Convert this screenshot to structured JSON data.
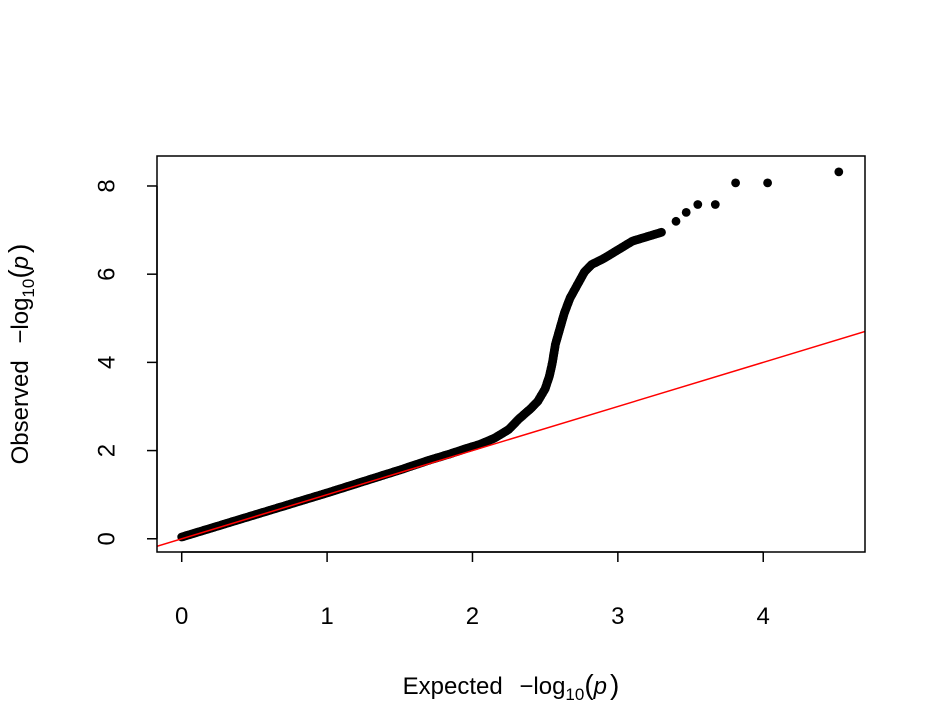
{
  "chart_data": {
    "type": "scatter",
    "title": "",
    "xlabel": {
      "prefix": "Expected",
      "minus": "−",
      "log": "log",
      "base": "10",
      "open": "(",
      "var": "p",
      "close": ")"
    },
    "ylabel": {
      "prefix": "Observed",
      "minus": "−",
      "log": "log",
      "base": "10",
      "open": "(",
      "var": "p",
      "close": ")"
    },
    "xlim": [
      -0.17,
      4.7
    ],
    "ylim": [
      -0.3,
      8.68
    ],
    "x_ticks": [
      0,
      1,
      2,
      3,
      4
    ],
    "y_ticks": [
      0,
      2,
      4,
      6,
      8
    ],
    "x_tick_labels": [
      "0",
      "1",
      "2",
      "3",
      "4"
    ],
    "y_tick_labels": [
      "0",
      "2",
      "4",
      "6",
      "8"
    ],
    "grid": false,
    "legend": "none",
    "reference_line": {
      "intercept": 0,
      "slope": 1,
      "color": "#ff0000"
    },
    "point_color": "#000000",
    "series": [
      {
        "name": "observed",
        "main_trend": [
          [
            0.0,
            0.04
          ],
          [
            0.25,
            0.29
          ],
          [
            0.5,
            0.54
          ],
          [
            0.75,
            0.79
          ],
          [
            1.0,
            1.04
          ],
          [
            1.25,
            1.3
          ],
          [
            1.5,
            1.56
          ],
          [
            1.7,
            1.78
          ],
          [
            1.85,
            1.93
          ],
          [
            1.95,
            2.04
          ],
          [
            2.05,
            2.14
          ],
          [
            2.15,
            2.28
          ],
          [
            2.25,
            2.48
          ],
          [
            2.32,
            2.72
          ],
          [
            2.4,
            2.95
          ],
          [
            2.45,
            3.12
          ],
          [
            2.5,
            3.4
          ],
          [
            2.53,
            3.7
          ],
          [
            2.55,
            4.0
          ],
          [
            2.57,
            4.4
          ],
          [
            2.6,
            4.75
          ],
          [
            2.63,
            5.1
          ],
          [
            2.67,
            5.45
          ],
          [
            2.72,
            5.75
          ],
          [
            2.77,
            6.05
          ],
          [
            2.82,
            6.22
          ],
          [
            2.9,
            6.35
          ],
          [
            3.0,
            6.55
          ],
          [
            3.1,
            6.75
          ],
          [
            3.2,
            6.85
          ],
          [
            3.3,
            6.95
          ]
        ],
        "top_points": [
          [
            3.4,
            7.2
          ],
          [
            3.47,
            7.4
          ],
          [
            3.55,
            7.58
          ],
          [
            3.67,
            7.58
          ],
          [
            3.81,
            8.07
          ],
          [
            4.03,
            8.07
          ],
          [
            4.52,
            8.32
          ]
        ]
      }
    ]
  }
}
